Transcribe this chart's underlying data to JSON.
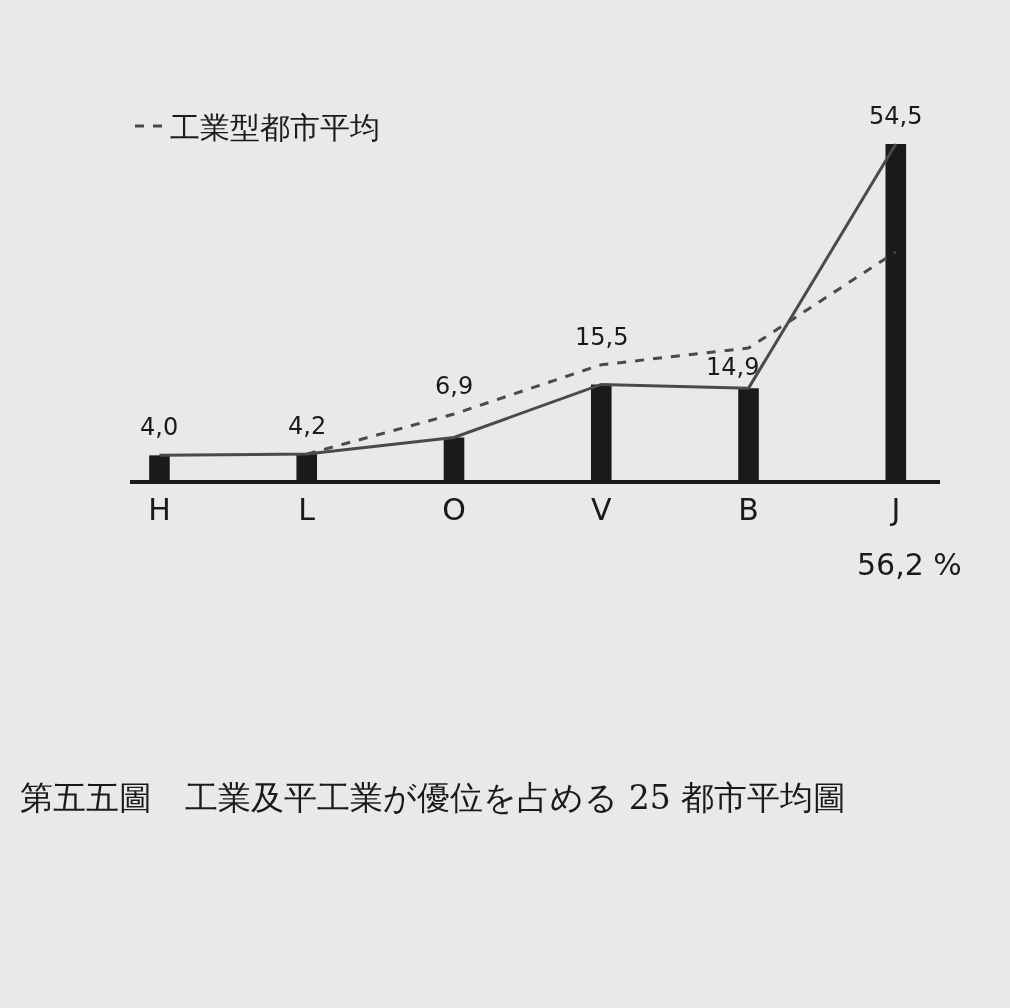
{
  "chart_data": {
    "type": "bar",
    "title": "第五五圖　工業及平工業が優位を占める 25 都市平均圖",
    "categories": [
      "H",
      "L",
      "O",
      "V",
      "B",
      "J"
    ],
    "series": [
      {
        "color": "#1a1a1a",
        "values": [
          4.0,
          4.2,
          6.9,
          15.5,
          14.9,
          54.5
        ],
        "value_labels": [
          "4,0",
          "4,2",
          "6,9",
          "15,5",
          "14,9",
          "54,5"
        ]
      },
      {
        "type": "line",
        "color": "#4a4a4a",
        "line_style": "solid",
        "values": [
          4.0,
          4.2,
          6.9,
          15.5,
          14.9,
          54.5
        ]
      },
      {
        "type": "line",
        "name": "工業型都市平均",
        "color": "#4a4a4a",
        "line_style": "dashed",
        "values": [
          null,
          4.2,
          10.7,
          18.7,
          21.4,
          37
        ]
      }
    ],
    "annotations": [
      "56,2 %"
    ],
    "tick_labels": "x",
    "grid": false,
    "legend": "top left",
    "marker": "none"
  }
}
